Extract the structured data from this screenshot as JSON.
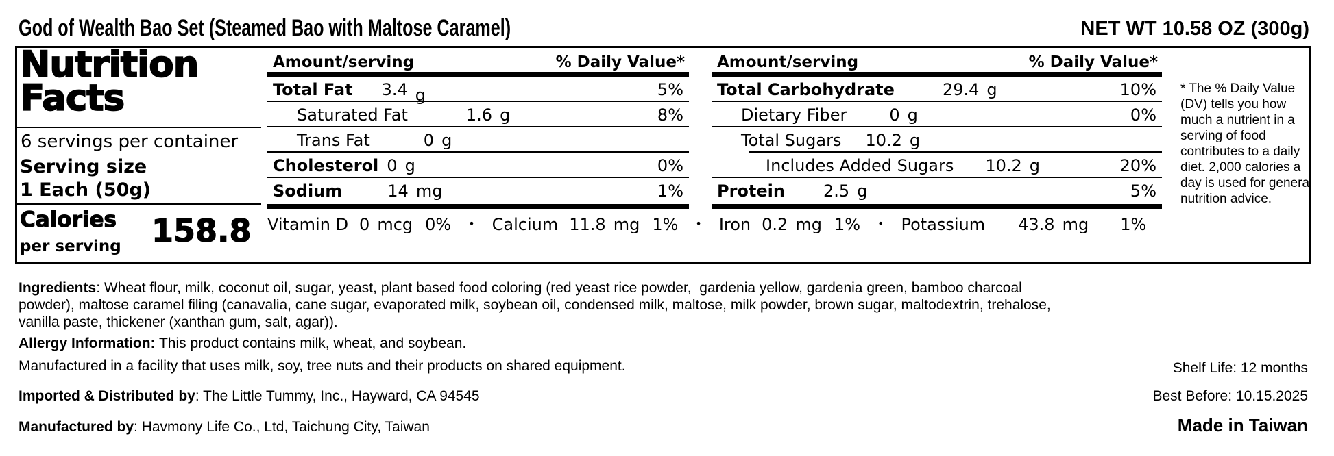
{
  "header": {
    "product_title": "God of Wealth Bao Set (Steamed Bao with Maltose Caramel)",
    "net_weight": "NET WT 10.58 OZ (300g)"
  },
  "panel": {
    "title_line1": "Nutrition",
    "title_line2": "Facts",
    "servings_per_container": "6 servings per container",
    "serving_size_label": "Serving size",
    "serving_size_value": "1 Each (50g)",
    "calories_label": "Calories",
    "calories_sub": "per serving",
    "calories_value": "158.8",
    "amount_header": "Amount/serving",
    "dv_header": "% Daily Value*",
    "bullet": "•",
    "left_table": {
      "rows": [
        {
          "label": "Total Fat",
          "value": "3.4",
          "unit": "g",
          "dv": "5%"
        },
        {
          "label": "Saturated Fat",
          "value": "1.6",
          "unit": "g",
          "dv": "8%"
        },
        {
          "label": "Trans Fat",
          "value": "0",
          "unit": "g",
          "dv": ""
        },
        {
          "label": "Cholesterol",
          "value": "0",
          "unit": "g",
          "dv": "0%"
        },
        {
          "label": "Sodium",
          "value": "14",
          "unit": "mg",
          "dv": "1%"
        }
      ]
    },
    "right_table": {
      "rows": [
        {
          "label": "Total Carbohydrate",
          "value": "29.4",
          "unit": "g",
          "dv": "10%"
        },
        {
          "label": "Dietary Fiber",
          "value": "0",
          "unit": "g",
          "dv": "0%"
        },
        {
          "label": "Total Sugars",
          "value": "10.2",
          "unit": "g",
          "dv": ""
        },
        {
          "label": "Includes Added Sugars",
          "value": "10.2",
          "unit": "g",
          "dv": "20%"
        },
        {
          "label": "Protein",
          "value": "2.5",
          "unit": "g",
          "dv": "5%"
        }
      ]
    },
    "micronutrients": [
      {
        "name": "Vitamin D",
        "value": "0",
        "unit": "mcg",
        "dv": "0%"
      },
      {
        "name": "Calcium",
        "value": "11.8",
        "unit": "mg",
        "dv": "1%"
      },
      {
        "name": "Iron",
        "value": "0.2",
        "unit": "mg",
        "dv": "1%"
      },
      {
        "name": "Potassium",
        "value": "43.8",
        "unit": "mg",
        "dv": "1%"
      }
    ],
    "footnote": "* The % Daily Value (DV) tells you how much a nutrient in a serving of food contributes to a daily diet. 2,000 calories a day is used for general nutrition advice."
  },
  "info": {
    "ingredients_label": "Ingredients",
    "ingredients_text": ": Wheat flour, milk, coconut oil, sugar, yeast, plant based food coloring (red yeast rice powder,  gardenia yellow, gardenia green, bamboo charcoal powder), maltose caramel filing (canavalia, cane sugar, evaporated milk, soybean oil, condensed milk, maltose, milk powder, brown sugar, maltodextrin, trehalose, vanilla paste, thickener (xanthan gum, salt, agar)).",
    "allergy_label": "Allergy Information:",
    "allergy_text": " This product contains milk, wheat, and soybean.",
    "facility_text": "Manufactured in a facility that uses milk, soy, tree nuts and their products on shared equipment.",
    "imported_label": "Imported & Distributed by",
    "imported_text": ": The Little Tummy, Inc., Hayward, CA 94545",
    "manufactured_label": "Manufactured by",
    "manufactured_text": ": Havmony Life Co., Ltd, Taichung City, Taiwan",
    "shelf_life": "Shelf Life: 12 months",
    "best_before": "Best Before: 10.15.2025",
    "made_in": "Made in Taiwan"
  }
}
